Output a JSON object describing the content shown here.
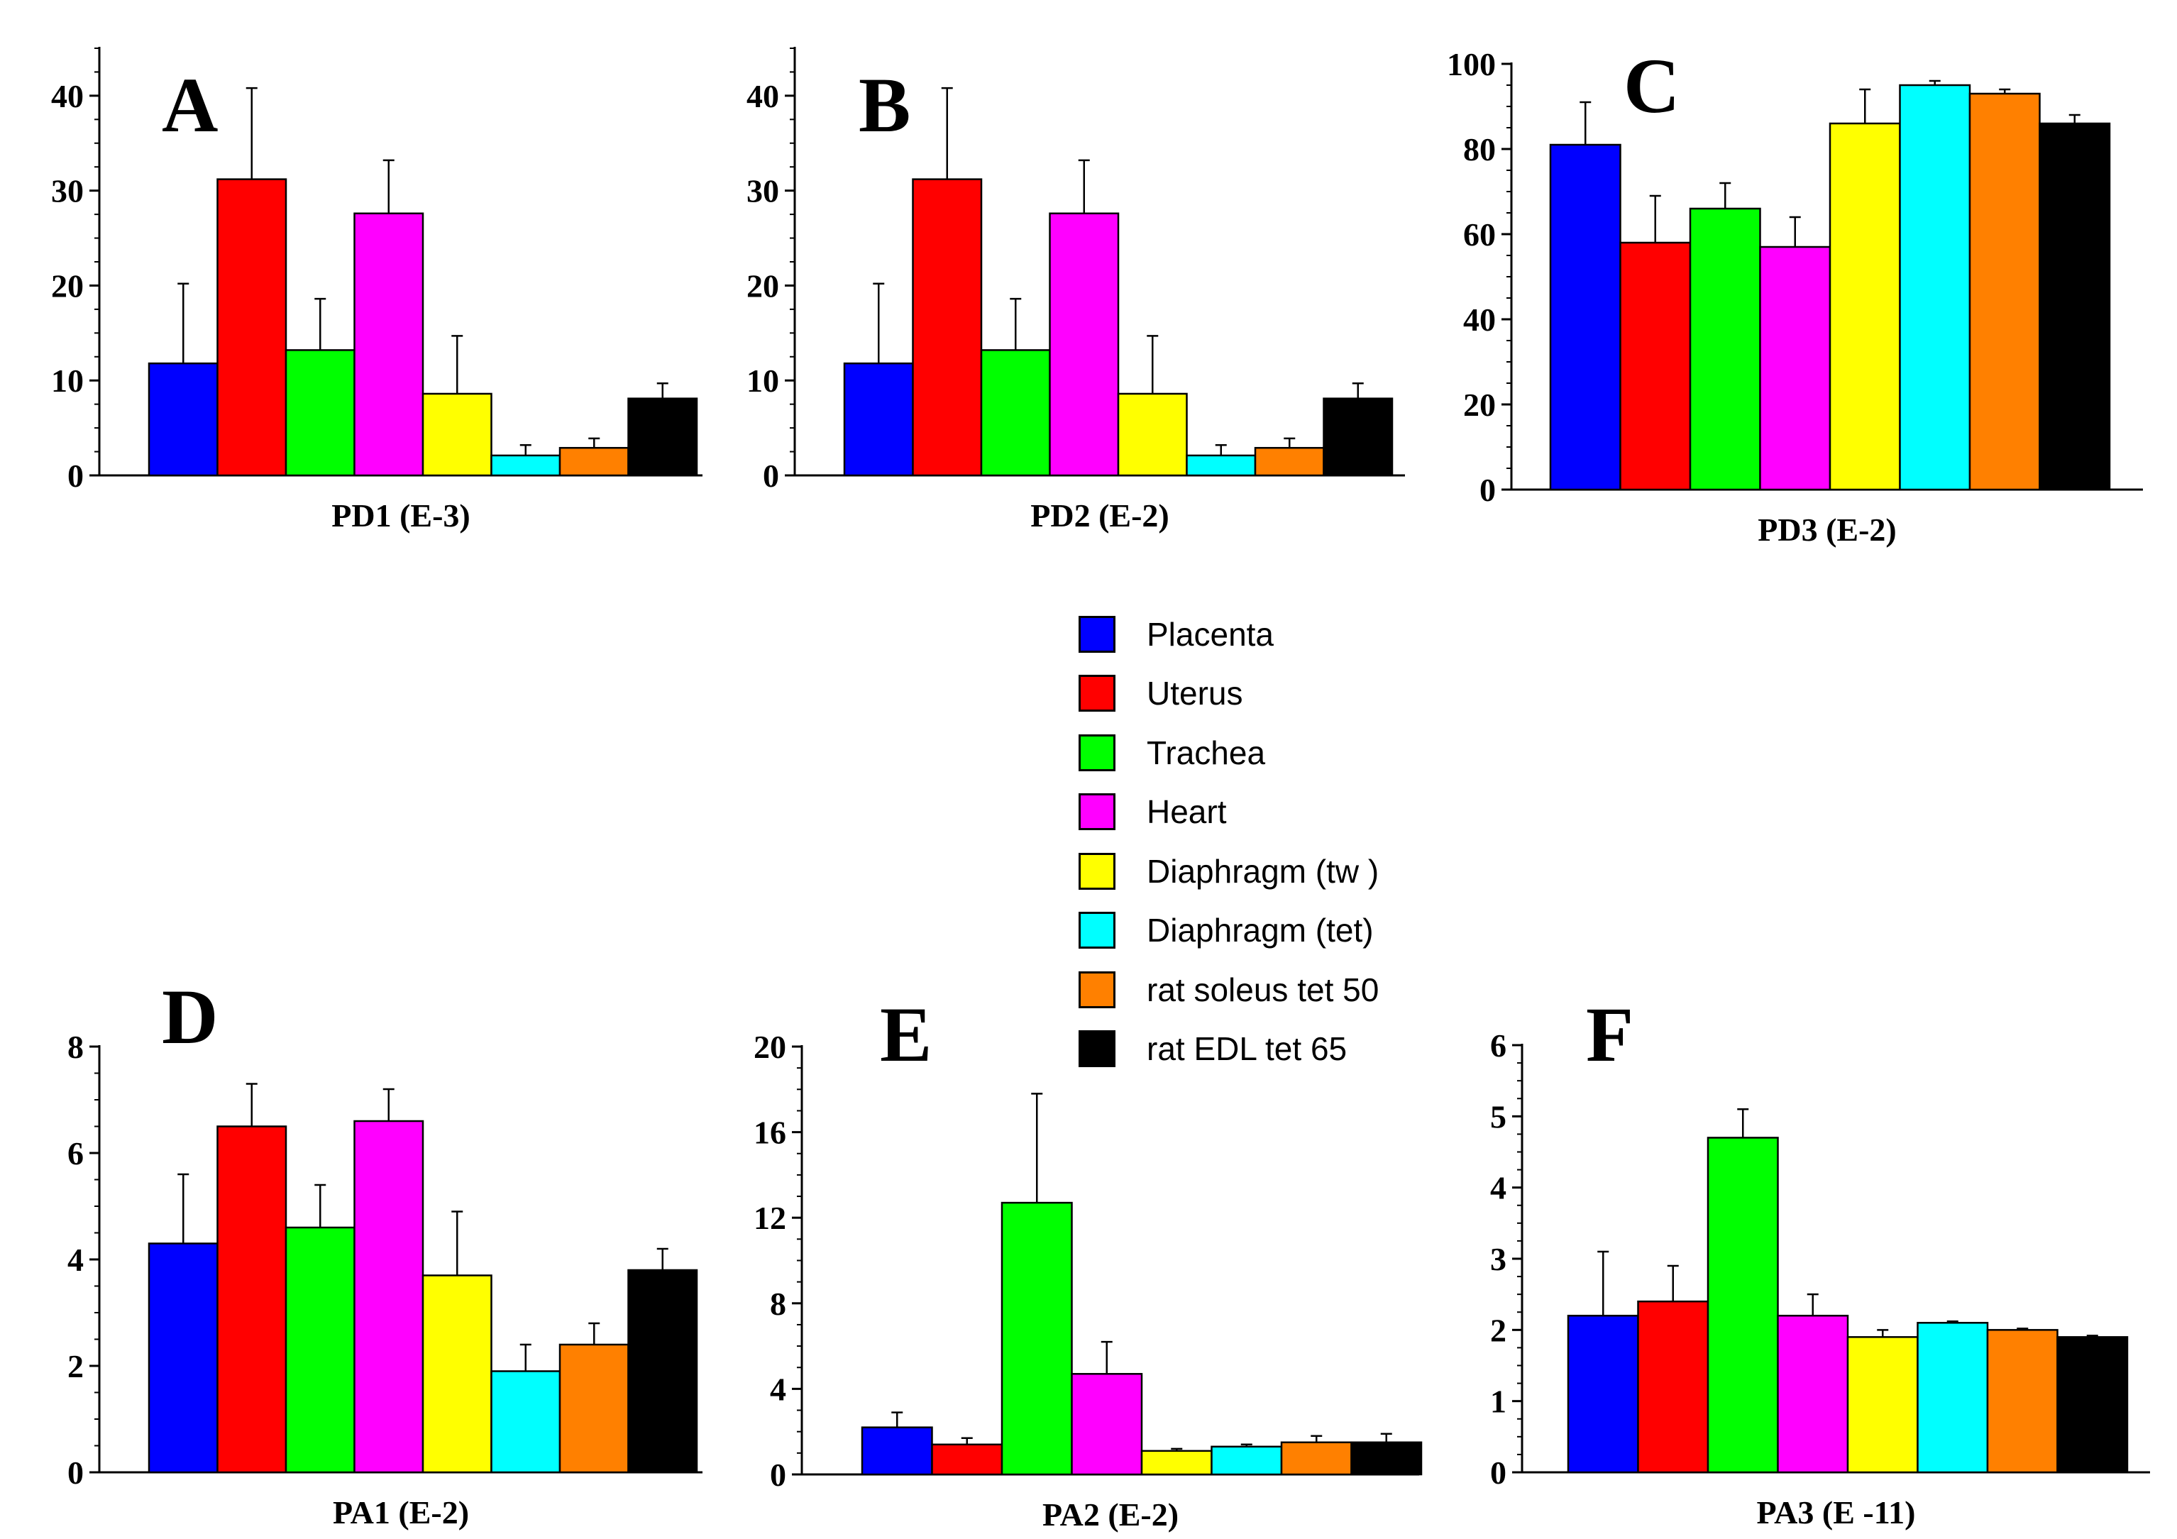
{
  "chart_data": [
    {
      "type": "bar",
      "panel_label": "A",
      "xlabel": "PD1 (E-3)",
      "ylim": [
        0,
        45
      ],
      "yticks": [
        0,
        10,
        20,
        30,
        40
      ],
      "values": [
        11.8,
        31.2,
        13.2,
        27.6,
        8.6,
        2.1,
        2.9,
        8.1
      ],
      "errors": [
        8.4,
        9.6,
        5.4,
        5.6,
        6.1,
        1.1,
        1.0,
        1.6
      ]
    },
    {
      "type": "bar",
      "panel_label": "B",
      "xlabel": "PD2 (E-2)",
      "ylim": [
        0,
        45
      ],
      "yticks": [
        0,
        10,
        20,
        30,
        40
      ],
      "values": [
        11.8,
        31.2,
        13.2,
        27.6,
        8.6,
        2.1,
        2.9,
        8.1
      ],
      "errors": [
        8.4,
        9.6,
        5.4,
        5.6,
        6.1,
        1.1,
        1.0,
        1.6
      ]
    },
    {
      "type": "bar",
      "panel_label": "C",
      "xlabel": "PD3 (E-2)",
      "ylim": [
        0,
        100
      ],
      "yticks": [
        0,
        20,
        40,
        60,
        80,
        100
      ],
      "values": [
        81,
        58,
        66,
        57,
        86,
        95,
        93,
        86
      ],
      "errors": [
        10,
        11,
        6,
        7,
        8,
        1,
        1,
        2
      ]
    },
    {
      "type": "bar",
      "panel_label": "D",
      "xlabel": "PA1 (E-2)",
      "ylim": [
        0,
        8
      ],
      "yticks": [
        0,
        2,
        4,
        6,
        8
      ],
      "values": [
        4.3,
        6.5,
        4.6,
        6.6,
        3.7,
        1.9,
        2.4,
        3.8
      ],
      "errors": [
        1.3,
        0.8,
        0.8,
        0.6,
        1.2,
        0.5,
        0.4,
        0.4
      ]
    },
    {
      "type": "bar",
      "panel_label": "E",
      "xlabel": "PA2 (E-2)",
      "ylim": [
        0,
        20
      ],
      "yticks": [
        0,
        4,
        8,
        12,
        16,
        20
      ],
      "values": [
        2.2,
        1.4,
        12.7,
        4.7,
        1.1,
        1.3,
        1.5,
        1.5
      ],
      "errors": [
        0.7,
        0.3,
        5.1,
        1.5,
        0.1,
        0.1,
        0.3,
        0.4
      ]
    },
    {
      "type": "bar",
      "panel_label": "F",
      "xlabel": "PA3 (E -11)",
      "ylim": [
        0,
        6
      ],
      "yticks": [
        0,
        1,
        2,
        3,
        4,
        5,
        6
      ],
      "values": [
        2.2,
        2.4,
        4.7,
        2.2,
        1.9,
        2.1,
        2.0,
        1.9
      ],
      "errors": [
        0.9,
        0.5,
        0.4,
        0.3,
        0.1,
        0.02,
        0.02,
        0.02
      ]
    }
  ],
  "legend": {
    "items": [
      {
        "label": "Placenta",
        "color": "#0000ff"
      },
      {
        "label": "Uterus",
        "color": "#ff0000"
      },
      {
        "label": "Trachea",
        "color": "#00ff00"
      },
      {
        "label": "Heart",
        "color": "#ff00ff"
      },
      {
        "label": "Diaphragm (tw )",
        "color": "#ffff00"
      },
      {
        "label": "Diaphragm (tet)",
        "color": "#00ffff"
      },
      {
        "label": "rat soleus tet 50",
        "color": "#ff8000"
      },
      {
        "label": "rat EDL tet 65",
        "color": "#000000"
      }
    ]
  }
}
